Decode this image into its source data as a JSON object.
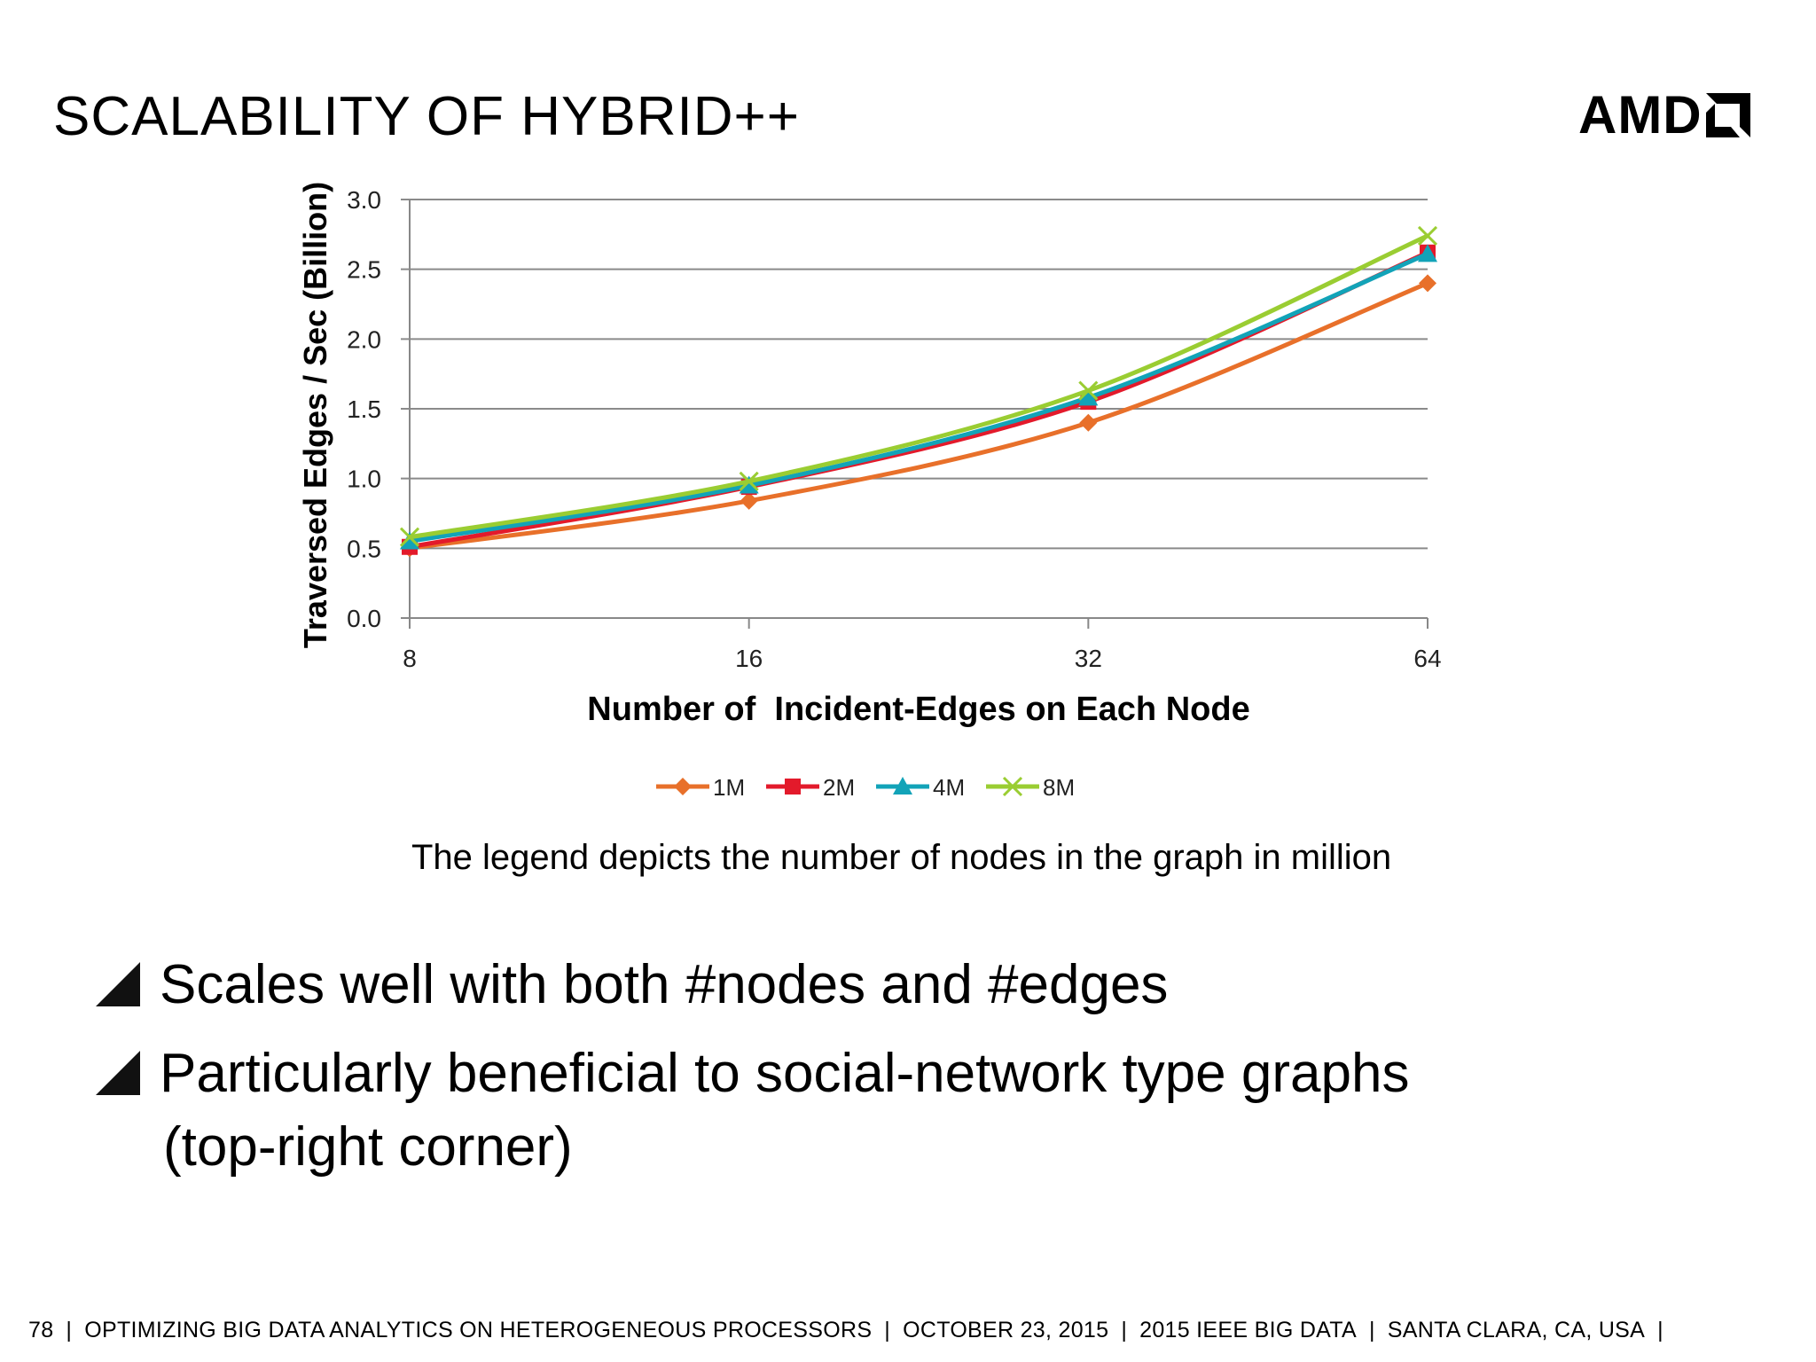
{
  "slide": {
    "title": "SCALABILITY OF HYBRID++",
    "logo_text": "AMD",
    "caption": "The legend depicts the number of nodes in the graph in million",
    "bullets": [
      "Scales well with both #nodes and #edges",
      "Particularly beneficial to social-network type graphs"
    ],
    "bullet_continuation": "(top-right corner)",
    "footer": {
      "page": "78",
      "talk": "OPTIMIZING BIG DATA ANALYTICS ON HETEROGENEOUS PROCESSORS",
      "date": "OCTOBER 23, 2015",
      "venue": "2015 IEEE BIG DATA",
      "location": "SANTA CLARA, CA, USA"
    }
  },
  "chart_data": {
    "type": "line",
    "xlabel": "Number of  Incident-Edges on Each Node",
    "ylabel": "Traversed Edges / Sec (Billion)",
    "categories": [
      "8",
      "16",
      "32",
      "64"
    ],
    "yticks": [
      "0.0",
      "0.5",
      "1.0",
      "1.5",
      "2.0",
      "2.5",
      "3.0"
    ],
    "ylim": [
      0,
      3.0
    ],
    "grid": true,
    "legend_position": "bottom",
    "series": [
      {
        "name": "1M",
        "color": "#E8702A",
        "marker": "diamond",
        "values": [
          0.5,
          0.84,
          1.4,
          2.4
        ]
      },
      {
        "name": "2M",
        "color": "#E31A2B",
        "marker": "square",
        "values": [
          0.51,
          0.94,
          1.55,
          2.62
        ]
      },
      {
        "name": "4M",
        "color": "#12A3B8",
        "marker": "triangle",
        "values": [
          0.55,
          0.95,
          1.58,
          2.61
        ]
      },
      {
        "name": "8M",
        "color": "#9ACD32",
        "marker": "x",
        "values": [
          0.58,
          0.98,
          1.63,
          2.74
        ]
      }
    ]
  }
}
